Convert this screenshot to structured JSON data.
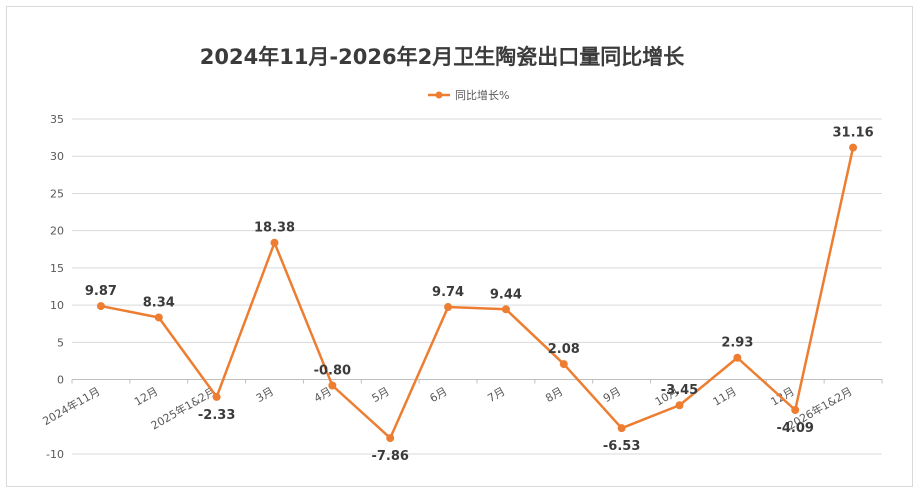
{
  "chart_data": {
    "type": "line",
    "title": "2024年11月-2026年2月卫生陶瓷出口量同比增长",
    "categories": [
      "2024年11月",
      "12月",
      "2025年1&2月",
      "3月",
      "4月",
      "5月",
      "6月",
      "7月",
      "8月",
      "9月",
      "10月",
      "11月",
      "12月",
      "2026年1&2月"
    ],
    "series": [
      {
        "name": "同比增长%",
        "values": [
          9.87,
          8.34,
          -2.33,
          18.38,
          -0.8,
          -7.86,
          9.74,
          9.44,
          2.08,
          -6.53,
          -3.45,
          2.93,
          -4.09,
          31.16
        ],
        "labels": [
          "9.87",
          "8.34",
          "-2.33",
          "18.38",
          "-0.80",
          "-7.86",
          "9.74",
          "9.44",
          "2.08",
          "-6.53",
          "-3.45",
          "2.93",
          "-4.09",
          "31.16"
        ]
      }
    ],
    "ylim": [
      -10,
      35
    ],
    "yticks": [
      35,
      30,
      25,
      20,
      15,
      10,
      5,
      0,
      -10
    ],
    "grid": true,
    "legend": "top-center",
    "colors": {
      "line": "#ed7d31",
      "grid": "#d9d9d9",
      "axis": "#bfbfbf"
    }
  }
}
